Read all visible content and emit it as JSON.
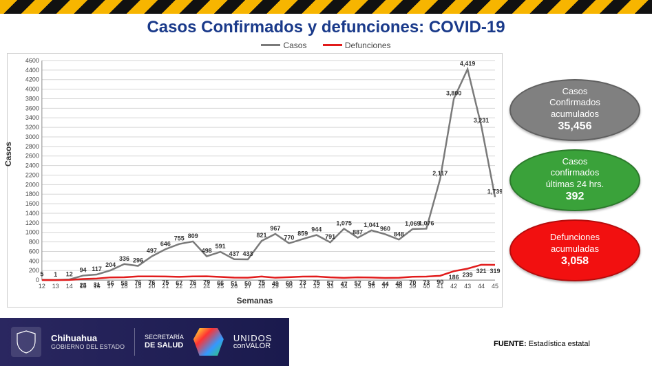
{
  "title": "Casos Confirmados y defunciones: COVID-19",
  "legend": {
    "casos": "Casos",
    "defunciones": "Defunciones"
  },
  "chart": {
    "type": "line",
    "xlabel": "Semanas",
    "ylabel": "Casos",
    "ylim": [
      0,
      4600
    ],
    "ytick_step": 200,
    "background_color": "#ffffff",
    "grid_color": "#d5d5d5",
    "axis_color": "#888888",
    "title_fontsize": 24,
    "label_fontsize": 12,
    "tick_fontsize": 9,
    "series": {
      "casos": {
        "color": "#7a7a7a",
        "line_width": 2.5,
        "x": [
          12,
          13,
          14,
          15,
          16,
          17,
          18,
          19,
          20,
          21,
          22,
          23,
          24,
          25,
          26,
          27,
          28,
          29,
          30,
          31,
          32,
          33,
          34,
          35,
          36,
          37,
          38,
          39,
          40,
          41,
          42,
          43,
          44,
          45
        ],
        "y": [
          5,
          1,
          12,
          94,
          117,
          204,
          336,
          296,
          497,
          646,
          755,
          809,
          498,
          591,
          437,
          433,
          821,
          967,
          770,
          859,
          944,
          791,
          1075,
          887,
          1041,
          960,
          848,
          1069,
          1076,
          2117,
          3800,
          4419,
          3231,
          1739
        ],
        "labels": [
          5,
          1,
          12,
          94,
          117,
          204,
          336,
          296,
          497,
          646,
          755,
          809,
          498,
          591,
          437,
          433,
          821,
          967,
          770,
          859,
          944,
          791,
          "1,075",
          887,
          "1,041",
          960,
          848,
          "1,069",
          "1,076",
          "2,117",
          "3,800",
          "4,419",
          "3,231",
          "1,739"
        ]
      },
      "defunciones": {
        "color": "#e11b1b",
        "line_width": 2.5,
        "x": [
          12,
          13,
          14,
          15,
          16,
          17,
          18,
          19,
          20,
          21,
          22,
          23,
          24,
          25,
          26,
          27,
          28,
          29,
          30,
          31,
          32,
          33,
          34,
          35,
          36,
          37,
          38,
          39,
          40,
          41,
          42,
          43,
          44,
          45
        ],
        "y": [
          0,
          0,
          2,
          23,
          31,
          56,
          58,
          76,
          76,
          75,
          67,
          76,
          79,
          66,
          51,
          50,
          75,
          49,
          60,
          73,
          75,
          57,
          47,
          57,
          54,
          44,
          48,
          70,
          73,
          90,
          186,
          239,
          321,
          319
        ],
        "labels": [
          "",
          "",
          "",
          "23",
          "31",
          "56",
          "58",
          "76",
          "76",
          "75",
          "67",
          "76",
          "79",
          "66",
          "51",
          "50",
          "75",
          "49",
          "60",
          "73",
          "75",
          "57",
          "47",
          "57",
          "54",
          "44",
          "48",
          "70",
          "73",
          "90",
          "186",
          "239",
          "321",
          "319"
        ]
      }
    }
  },
  "ovals": [
    {
      "bg": "#808080",
      "lines": [
        "Casos",
        "Confirmados",
        "acumulados"
      ],
      "value": "35,456"
    },
    {
      "bg": "#3aa23a",
      "lines": [
        "Casos",
        "confirmados",
        "últimas 24 hrs."
      ],
      "value": "392"
    },
    {
      "bg": "#f21010",
      "lines": [
        "Defunciones",
        "acumuladas"
      ],
      "value": "3,058"
    }
  ],
  "footer": {
    "gov_name": "Chihuahua",
    "gov_sub": "GOBIERNO DEL ESTADO",
    "secretaria_top": "SECRETARÍA",
    "secretaria_bot": "DE SALUD",
    "campaign_top": "UNIDOS",
    "campaign_bot_light": "con",
    "campaign_bot_bold": "VALOR",
    "fuente_label": "FUENTE:",
    "fuente_value": "Estadística estatal"
  }
}
